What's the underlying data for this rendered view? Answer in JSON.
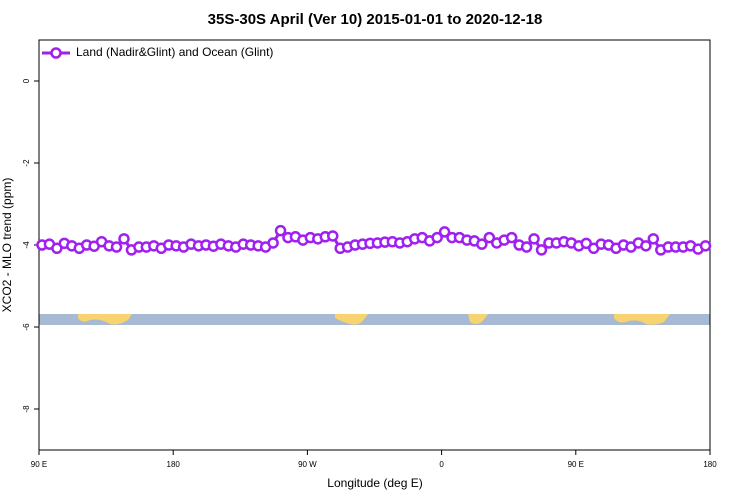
{
  "chart_data": {
    "type": "line",
    "title": "35S-30S April (Ver 10)   2015-01-01 to 2020-12-18",
    "x_label": "Longitude (deg E)",
    "y_label": "XCO2 - MLO trend (ppm)",
    "xlim": [
      90,
      540
    ],
    "xticks": [
      {
        "value": 90,
        "label": "90 E"
      },
      {
        "value": 180,
        "label": "180"
      },
      {
        "value": 270,
        "label": "90 W"
      },
      {
        "value": 360,
        "label": "0"
      },
      {
        "value": 450,
        "label": "90 E"
      },
      {
        "value": 540,
        "label": "180"
      }
    ],
    "ylim": [
      -9,
      1
    ],
    "yticks": [
      0,
      -2,
      -4,
      -6,
      -8
    ],
    "legend_position": "top-left",
    "x": [
      92,
      97,
      102,
      107,
      112,
      117,
      122,
      127,
      132,
      137,
      142,
      147,
      152,
      157,
      162,
      167,
      172,
      177,
      182,
      187,
      192,
      197,
      202,
      207,
      212,
      217,
      222,
      227,
      232,
      237,
      242,
      247,
      252,
      257,
      262,
      267,
      272,
      277,
      282,
      287,
      292,
      297,
      302,
      307,
      312,
      317,
      322,
      327,
      332,
      337,
      342,
      347,
      352,
      357,
      362,
      367,
      372,
      377,
      382,
      387,
      392,
      397,
      402,
      407,
      412,
      417,
      422,
      427,
      432,
      437,
      442,
      447,
      452,
      457,
      462,
      467,
      472,
      477,
      482,
      487,
      492,
      497,
      502,
      507,
      512,
      517,
      522,
      527,
      532,
      537
    ],
    "series": [
      {
        "name": "Land (Nadir&Glint) and Ocean (Glint)",
        "color": "#a020f0",
        "values": [
          -4.0,
          -3.98,
          -4.08,
          -3.96,
          -4.02,
          -4.08,
          -4.0,
          -4.03,
          -3.92,
          -4.02,
          -4.05,
          -3.85,
          -4.12,
          -4.05,
          -4.05,
          -4.02,
          -4.08,
          -4.0,
          -4.02,
          -4.05,
          -3.98,
          -4.02,
          -4.0,
          -4.03,
          -3.98,
          -4.02,
          -4.05,
          -3.98,
          -4.0,
          -4.02,
          -4.05,
          -3.95,
          -3.65,
          -3.82,
          -3.8,
          -3.88,
          -3.82,
          -3.85,
          -3.8,
          -3.78,
          -4.08,
          -4.05,
          -4.0,
          -3.98,
          -3.96,
          -3.95,
          -3.93,
          -3.92,
          -3.95,
          -3.92,
          -3.85,
          -3.82,
          -3.9,
          -3.82,
          -3.68,
          -3.82,
          -3.82,
          -3.88,
          -3.9,
          -3.98,
          -3.82,
          -3.95,
          -3.88,
          -3.82,
          -4.0,
          -4.05,
          -3.85,
          -4.12,
          -3.95,
          -3.95,
          -3.92,
          -3.95,
          -4.02,
          -3.96,
          -4.08,
          -3.98,
          -4.0,
          -4.08,
          -4.0,
          -4.05,
          -3.95,
          -4.02,
          -3.85,
          -4.12,
          -4.05,
          -4.05,
          -4.05,
          -4.02,
          -4.1,
          -4.02
        ]
      }
    ]
  }
}
